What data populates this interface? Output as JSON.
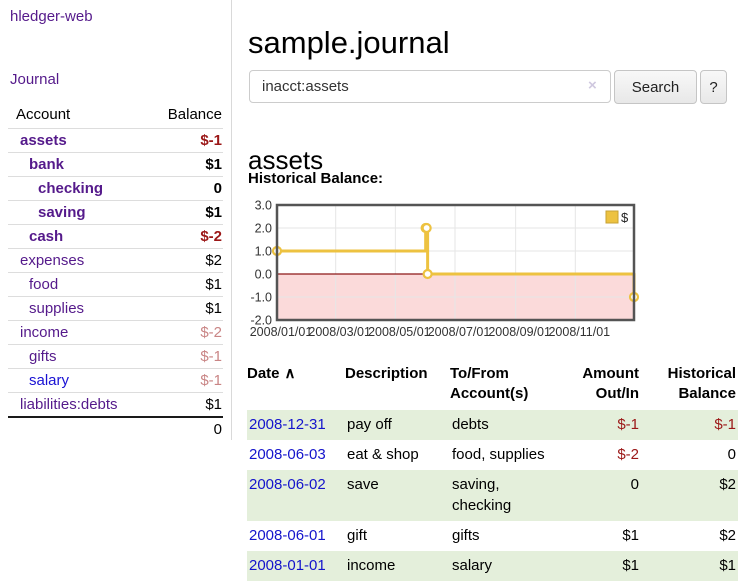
{
  "colors": {
    "link_purple": "#551a8b",
    "link_blue": "#1a12d4",
    "negative_strong": "#9b1717",
    "negative_soft": "#c98585",
    "row_green": "#e4efdb",
    "chart_series_yellow": "#edc240",
    "chart_negative_pink": "#fbdada",
    "chart_zero_line_red": "#8c1717"
  },
  "sidebar": {
    "app_title": "hledger-web",
    "journal_link": "Journal",
    "accounts": {
      "col_account": "Account",
      "col_balance": "Balance",
      "rows": [
        {
          "name": "assets",
          "depth": 0,
          "bold": true,
          "balance": "$-1",
          "balance_tone": "neg-strong",
          "name_tone": "purple"
        },
        {
          "name": "bank",
          "depth": 1,
          "bold": true,
          "balance": "$1",
          "balance_tone": "normal",
          "name_tone": "purple"
        },
        {
          "name": "checking",
          "depth": 2,
          "bold": true,
          "balance": "0",
          "balance_tone": "normal",
          "name_tone": "purple"
        },
        {
          "name": "saving",
          "depth": 2,
          "bold": true,
          "balance": "$1",
          "balance_tone": "normal",
          "name_tone": "purple"
        },
        {
          "name": "cash",
          "depth": 1,
          "bold": true,
          "balance": "$-2",
          "balance_tone": "neg-strong",
          "name_tone": "purple"
        },
        {
          "name": "expenses",
          "depth": 0,
          "bold": false,
          "balance": "$2",
          "balance_tone": "normal",
          "name_tone": "purple"
        },
        {
          "name": "food",
          "depth": 1,
          "bold": false,
          "balance": "$1",
          "balance_tone": "normal",
          "name_tone": "purple"
        },
        {
          "name": "supplies",
          "depth": 1,
          "bold": false,
          "balance": "$1",
          "balance_tone": "normal",
          "name_tone": "purple"
        },
        {
          "name": "income",
          "depth": 0,
          "bold": false,
          "balance": "$-2",
          "balance_tone": "neg-soft",
          "name_tone": "purple"
        },
        {
          "name": "gifts",
          "depth": 1,
          "bold": false,
          "balance": "$-1",
          "balance_tone": "neg-soft",
          "name_tone": "purple"
        },
        {
          "name": "salary",
          "depth": 1,
          "bold": false,
          "balance": "$-1",
          "balance_tone": "neg-soft",
          "name_tone": "blue"
        },
        {
          "name": "liabilities:debts",
          "depth": 0,
          "bold": false,
          "balance": "$1",
          "balance_tone": "normal",
          "name_tone": "purple"
        }
      ],
      "total": "0"
    }
  },
  "main": {
    "title": "sample.journal",
    "search": {
      "value": "inacct:assets",
      "clear_icon": "×",
      "button_label": "Search",
      "help_label": "?"
    },
    "account_heading": "assets",
    "chart_label": "Historical Balance:"
  },
  "chart_data": {
    "type": "line",
    "title": "Historical Balance",
    "legend": [
      {
        "label": "$",
        "color": "#edc240"
      }
    ],
    "legend_position": "top-right",
    "grid": true,
    "ylim": [
      -2.0,
      3.0
    ],
    "y_ticks": [
      "3.0",
      "2.0",
      "1.0",
      "0.0",
      "-1.0",
      "-2.0"
    ],
    "y_tick_values": [
      3,
      2,
      1,
      0,
      -1,
      -2
    ],
    "x_range_days": 365,
    "x_ticks": [
      {
        "day": 0,
        "label": "2008/01/01"
      },
      {
        "day": 60,
        "label": "2008/03/01"
      },
      {
        "day": 121,
        "label": "2008/05/01"
      },
      {
        "day": 182,
        "label": "2008/07/01"
      },
      {
        "day": 244,
        "label": "2008/09/01"
      },
      {
        "day": 305,
        "label": "2008/11/01"
      }
    ],
    "series": [
      {
        "name": "$",
        "color": "#edc240",
        "step": true,
        "points": [
          {
            "date": "2008-01-01",
            "day": 0,
            "value": 1
          },
          {
            "date": "2008-06-01",
            "day": 152,
            "value": 2
          },
          {
            "date": "2008-06-02",
            "day": 153,
            "value": 2
          },
          {
            "date": "2008-06-03",
            "day": 154,
            "value": 0
          },
          {
            "date": "2008-12-31",
            "day": 365,
            "value": -1
          }
        ]
      }
    ],
    "negative_region_fill": "#fbdada",
    "zero_line_color": "#8c1717"
  },
  "register": {
    "headers": {
      "date": "Date",
      "sort_icon": "∧",
      "description": "Description",
      "accounts": "To/From Account(s)",
      "amount": "Amount Out/In",
      "balance": "Historical Balance"
    },
    "rows": [
      {
        "date": "2008-12-31",
        "description": "pay off",
        "accounts": "debts",
        "amount": "$-1",
        "amount_negative": true,
        "balance": "$-1",
        "balance_negative": true,
        "shaded": true
      },
      {
        "date": "2008-06-03",
        "description": "eat & shop",
        "accounts": "food, supplies",
        "amount": "$-2",
        "amount_negative": true,
        "balance": "0",
        "balance_negative": false,
        "shaded": false
      },
      {
        "date": "2008-06-02",
        "description": "save",
        "accounts": "saving, checking",
        "amount": "0",
        "amount_negative": false,
        "balance": "$2",
        "balance_negative": false,
        "shaded": true
      },
      {
        "date": "2008-06-01",
        "description": "gift",
        "accounts": "gifts",
        "amount": "$1",
        "amount_negative": false,
        "balance": "$2",
        "balance_negative": false,
        "shaded": false
      },
      {
        "date": "2008-01-01",
        "description": "income",
        "accounts": "salary",
        "amount": "$1",
        "amount_negative": false,
        "balance": "$1",
        "balance_negative": false,
        "shaded": true
      }
    ]
  }
}
